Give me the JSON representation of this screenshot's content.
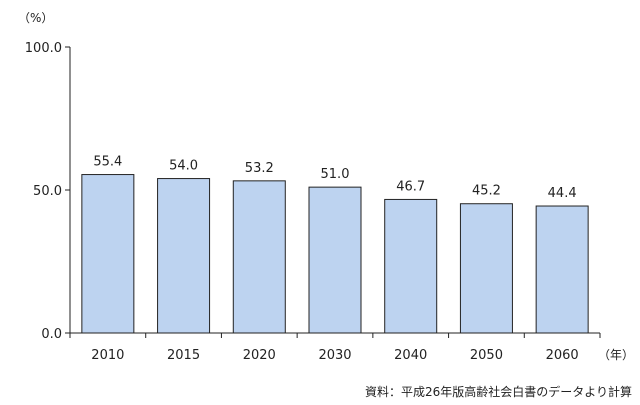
{
  "chart_data": {
    "type": "bar",
    "categories": [
      "2010",
      "2015",
      "2020",
      "2030",
      "2040",
      "2050",
      "2060"
    ],
    "values": [
      55.4,
      54.0,
      53.2,
      51.0,
      46.7,
      45.2,
      44.4
    ],
    "value_labels": [
      "55.4",
      "54.0",
      "53.2",
      "51.0",
      "46.7",
      "45.2",
      "44.4"
    ],
    "y_ticks": [
      0,
      50,
      100
    ],
    "y_tick_labels": [
      "0.0",
      "50.0",
      "100.0"
    ],
    "ylim": [
      0,
      100
    ],
    "y_unit": "（%）",
    "x_unit": "（年）",
    "grid": false,
    "bar_fill": "#bdd3f0",
    "bar_stroke": "#222222",
    "source": "資料：平成26年版高齢社会白書のデータより計算"
  }
}
